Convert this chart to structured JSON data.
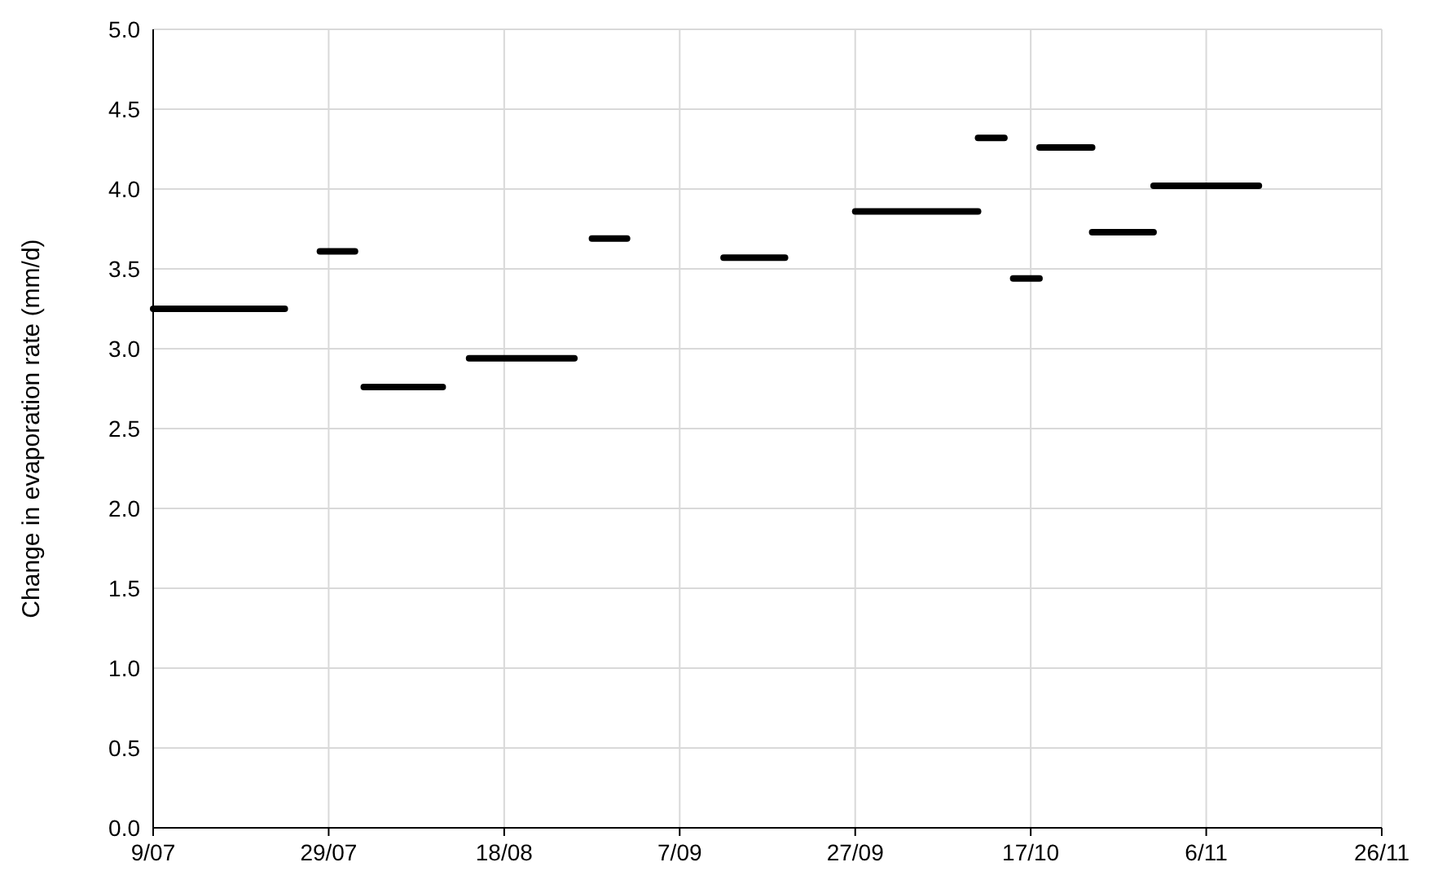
{
  "chart_data": {
    "type": "line",
    "ylabel": "Change in evaporation rate (mm/d)",
    "xlim": [
      "--07-09",
      "--11-26"
    ],
    "xticks": [
      {
        "value": "--07-09",
        "label": "9/07"
      },
      {
        "value": "--07-29",
        "label": "29/07"
      },
      {
        "value": "--08-18",
        "label": "18/08"
      },
      {
        "value": "--09-07",
        "label": "7/09"
      },
      {
        "value": "--09-27",
        "label": "27/09"
      },
      {
        "value": "--10-17",
        "label": "17/10"
      },
      {
        "value": "--11-06",
        "label": "6/11"
      },
      {
        "value": "--11-26",
        "label": "26/11"
      }
    ],
    "ylim": [
      0,
      5
    ],
    "yticks": [
      {
        "value": 0,
        "label": "0.0"
      },
      {
        "value": 0.5,
        "label": "0.5"
      },
      {
        "value": 1,
        "label": "1.0"
      },
      {
        "value": 1.5,
        "label": "1.5"
      },
      {
        "value": 2,
        "label": "2.0"
      },
      {
        "value": 2.5,
        "label": "2.5"
      },
      {
        "value": 3,
        "label": "3.0"
      },
      {
        "value": 3.5,
        "label": "3.5"
      },
      {
        "value": 4,
        "label": "4.0"
      },
      {
        "value": 4.5,
        "label": "4.5"
      },
      {
        "value": 5,
        "label": "5.0"
      }
    ],
    "grid": true,
    "marker": "none",
    "line_style": "solid",
    "series": [
      {
        "color": "#000000",
        "x": [
          "--07-09",
          "--07-24"
        ],
        "values": [
          3.25,
          3.25
        ]
      },
      {
        "color": "#000000",
        "x": [
          "--07-28",
          "--08-01"
        ],
        "values": [
          3.61,
          3.61
        ]
      },
      {
        "color": "#000000",
        "x": [
          "--08-02",
          "--08-11"
        ],
        "values": [
          2.76,
          2.76
        ]
      },
      {
        "color": "#000000",
        "x": [
          "--08-14",
          "--08-26"
        ],
        "values": [
          2.94,
          2.94
        ]
      },
      {
        "color": "#000000",
        "x": [
          "--08-28",
          "--09-01"
        ],
        "values": [
          3.69,
          3.69
        ]
      },
      {
        "color": "#000000",
        "x": [
          "--09-12",
          "--09-19"
        ],
        "values": [
          3.57,
          3.57
        ]
      },
      {
        "color": "#000000",
        "x": [
          "--09-27",
          "--10-11"
        ],
        "values": [
          3.86,
          3.86
        ]
      },
      {
        "color": "#000000",
        "x": [
          "--10-11",
          "--10-14"
        ],
        "values": [
          4.32,
          4.32
        ]
      },
      {
        "color": "#000000",
        "x": [
          "--10-15",
          "--10-18"
        ],
        "values": [
          3.44,
          3.44
        ]
      },
      {
        "color": "#000000",
        "x": [
          "--10-18",
          "--10-24"
        ],
        "values": [
          4.26,
          4.26
        ]
      },
      {
        "color": "#000000",
        "x": [
          "--10-24",
          "--10-31"
        ],
        "values": [
          3.73,
          3.73
        ]
      },
      {
        "color": "#000000",
        "x": [
          "--10-31",
          "--11-12"
        ],
        "values": [
          4.02,
          4.02
        ]
      }
    ]
  }
}
